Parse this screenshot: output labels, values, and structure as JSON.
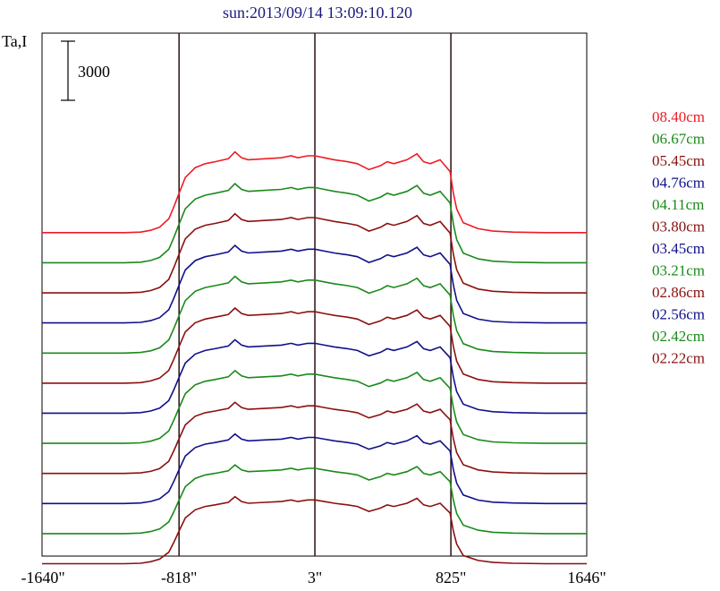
{
  "chart_data": {
    "type": "line",
    "title": "sun:2013/09/14 13:09:10.120",
    "ylabel": "Ta,I",
    "scale_bar_label": "3000",
    "scale_bar_value": 3000,
    "xlim": [
      -1646,
      1646
    ],
    "x_tick_labels": [
      "-1640\"",
      "-818\"",
      "3\"",
      "825\"",
      "1646\""
    ],
    "x_ticks": [
      -1640,
      -818,
      3,
      825,
      1646
    ],
    "vertical_lines": [
      -818,
      3,
      825
    ],
    "grid": false,
    "legend_position": "right",
    "stacked": true,
    "profile": {
      "x": [
        -1646,
        -1550,
        -1350,
        -1150,
        -1050,
        -990,
        -935,
        -880,
        -850,
        -818,
        -780,
        -720,
        -660,
        -600,
        -520,
        -480,
        -440,
        -400,
        -300,
        -200,
        -140,
        -100,
        -40,
        3,
        60,
        120,
        200,
        260,
        330,
        400,
        440,
        480,
        560,
        620,
        660,
        700,
        760,
        790,
        820,
        840,
        860,
        900,
        990,
        1080,
        1200,
        1400,
        1550,
        1646
      ],
      "y": [
        0,
        0,
        0,
        0,
        30,
        120,
        280,
        700,
        1300,
        2000,
        2800,
        3300,
        3500,
        3600,
        3750,
        4100,
        3800,
        3700,
        3750,
        3800,
        3900,
        3800,
        3900,
        3900,
        3800,
        3700,
        3600,
        3500,
        3200,
        3400,
        3600,
        3500,
        3700,
        4000,
        3600,
        3500,
        3700,
        3400,
        3100,
        2000,
        1200,
        500,
        200,
        80,
        30,
        0,
        0,
        0
      ]
    },
    "series": [
      {
        "name": "08.40cm",
        "color": "#ee1c24",
        "base": 7,
        "gain": 1.0
      },
      {
        "name": "06.67cm",
        "color": "#1a8a1a",
        "base": 7,
        "gain": 0.98
      },
      {
        "name": "05.45cm",
        "color": "#8b1010",
        "base": 6,
        "gain": 0.98
      },
      {
        "name": "04.76cm",
        "color": "#10108b",
        "base": 7,
        "gain": 0.96
      },
      {
        "name": "04.11cm",
        "color": "#1a8a1a",
        "base": 6,
        "gain": 0.95
      },
      {
        "name": "03.80cm",
        "color": "#8b1010",
        "base": 5,
        "gain": 0.93
      },
      {
        "name": "03.45cm",
        "color": "#10108b",
        "base": 7,
        "gain": 0.91
      },
      {
        "name": "03.21cm",
        "color": "#1a8a1a",
        "base": 6,
        "gain": 0.9
      },
      {
        "name": "02.86cm",
        "color": "#8b1010",
        "base": 5,
        "gain": 0.88
      },
      {
        "name": "02.56cm",
        "color": "#10108b",
        "base": 6,
        "gain": 0.86
      },
      {
        "name": "02.42cm",
        "color": "#1a8a1a",
        "base": 5,
        "gain": 0.85
      },
      {
        "name": "02.22cm",
        "color": "#8b1010",
        "base": 4,
        "gain": 0.83
      }
    ]
  }
}
